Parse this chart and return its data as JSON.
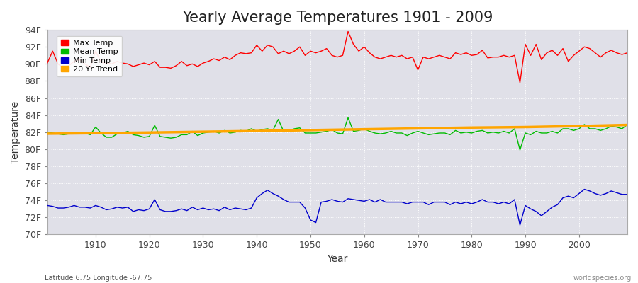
{
  "title": "Yearly Average Temperatures 1901 - 2009",
  "xlabel": "Year",
  "ylabel": "Temperature",
  "background_color": "#ffffff",
  "plot_bg_color": "#e0e0e8",
  "years": [
    1901,
    1902,
    1903,
    1904,
    1905,
    1906,
    1907,
    1908,
    1909,
    1910,
    1911,
    1912,
    1913,
    1914,
    1915,
    1916,
    1917,
    1918,
    1919,
    1920,
    1921,
    1922,
    1923,
    1924,
    1925,
    1926,
    1927,
    1928,
    1929,
    1930,
    1931,
    1932,
    1933,
    1934,
    1935,
    1936,
    1937,
    1938,
    1939,
    1940,
    1941,
    1942,
    1943,
    1944,
    1945,
    1946,
    1947,
    1948,
    1949,
    1950,
    1951,
    1952,
    1953,
    1954,
    1955,
    1956,
    1957,
    1958,
    1959,
    1960,
    1961,
    1962,
    1963,
    1964,
    1965,
    1966,
    1967,
    1968,
    1969,
    1970,
    1971,
    1972,
    1973,
    1974,
    1975,
    1976,
    1977,
    1978,
    1979,
    1980,
    1981,
    1982,
    1983,
    1984,
    1985,
    1986,
    1987,
    1988,
    1989,
    1990,
    1991,
    1992,
    1993,
    1994,
    1995,
    1996,
    1997,
    1998,
    1999,
    2000,
    2001,
    2002,
    2003,
    2004,
    2005,
    2006,
    2007,
    2008,
    2009
  ],
  "max_temp": [
    90.1,
    91.5,
    90.0,
    89.5,
    89.8,
    90.3,
    90.5,
    90.0,
    89.6,
    91.5,
    90.2,
    90.1,
    90.0,
    90.3,
    90.1,
    90.0,
    89.7,
    89.9,
    90.1,
    89.9,
    90.3,
    89.6,
    89.6,
    89.5,
    89.8,
    90.3,
    89.8,
    90.0,
    89.7,
    90.1,
    90.3,
    90.6,
    90.4,
    90.8,
    90.5,
    91.0,
    91.3,
    91.2,
    91.3,
    92.2,
    91.5,
    92.2,
    92.0,
    91.2,
    91.5,
    91.2,
    91.5,
    92.0,
    91.0,
    91.5,
    91.3,
    91.5,
    91.8,
    91.0,
    90.8,
    91.0,
    93.8,
    92.3,
    91.5,
    92.0,
    91.3,
    90.8,
    90.6,
    90.8,
    91.0,
    90.8,
    91.0,
    90.6,
    90.8,
    89.3,
    90.8,
    90.6,
    90.8,
    91.0,
    90.8,
    90.6,
    91.3,
    91.1,
    91.3,
    91.0,
    91.1,
    91.6,
    90.7,
    90.8,
    90.8,
    91.0,
    90.8,
    91.0,
    87.8,
    92.3,
    91.0,
    92.3,
    90.5,
    91.3,
    91.6,
    91.0,
    91.8,
    90.3,
    91.0,
    91.5,
    92.0,
    91.8,
    91.3,
    90.8,
    91.3,
    91.6,
    91.3,
    91.1,
    91.3
  ],
  "mean_temp": [
    82.0,
    81.9,
    81.8,
    81.7,
    81.8,
    82.0,
    81.8,
    81.9,
    81.7,
    82.6,
    81.9,
    81.4,
    81.4,
    81.8,
    81.9,
    82.1,
    81.7,
    81.6,
    81.4,
    81.5,
    82.8,
    81.5,
    81.4,
    81.3,
    81.4,
    81.7,
    81.7,
    82.1,
    81.6,
    81.9,
    82.0,
    82.1,
    81.9,
    82.2,
    81.9,
    82.0,
    82.2,
    82.1,
    82.4,
    82.1,
    82.3,
    82.4,
    82.2,
    83.5,
    82.1,
    82.2,
    82.4,
    82.5,
    81.9,
    81.9,
    81.9,
    82.0,
    82.1,
    82.3,
    81.9,
    81.8,
    83.7,
    82.1,
    82.2,
    82.4,
    82.1,
    81.9,
    81.8,
    81.9,
    82.1,
    81.9,
    81.9,
    81.6,
    81.9,
    82.1,
    81.9,
    81.7,
    81.8,
    81.9,
    81.9,
    81.7,
    82.2,
    81.9,
    82.0,
    81.9,
    82.1,
    82.2,
    81.9,
    82.0,
    81.9,
    82.1,
    81.9,
    82.4,
    79.9,
    81.9,
    81.7,
    82.1,
    81.9,
    81.9,
    82.1,
    81.9,
    82.4,
    82.4,
    82.2,
    82.4,
    82.9,
    82.4,
    82.4,
    82.2,
    82.4,
    82.7,
    82.6,
    82.4,
    82.9
  ],
  "min_temp": [
    73.4,
    73.3,
    73.1,
    73.1,
    73.2,
    73.4,
    73.2,
    73.2,
    73.1,
    73.4,
    73.2,
    72.9,
    73.0,
    73.2,
    73.1,
    73.2,
    72.7,
    72.9,
    72.8,
    73.0,
    74.1,
    72.9,
    72.7,
    72.7,
    72.8,
    73.0,
    72.8,
    73.2,
    72.9,
    73.1,
    72.9,
    73.0,
    72.8,
    73.2,
    72.9,
    73.1,
    73.0,
    72.9,
    73.1,
    74.3,
    74.8,
    75.2,
    74.8,
    74.5,
    74.1,
    73.8,
    73.8,
    73.8,
    73.1,
    71.7,
    71.4,
    73.8,
    73.9,
    74.1,
    73.9,
    73.8,
    74.2,
    74.1,
    74.0,
    73.9,
    74.1,
    73.8,
    74.1,
    73.8,
    73.8,
    73.8,
    73.8,
    73.6,
    73.8,
    73.8,
    73.8,
    73.5,
    73.8,
    73.8,
    73.8,
    73.5,
    73.8,
    73.6,
    73.8,
    73.6,
    73.8,
    74.1,
    73.8,
    73.8,
    73.6,
    73.8,
    73.6,
    74.1,
    71.1,
    73.4,
    73.0,
    72.7,
    72.2,
    72.7,
    73.2,
    73.5,
    74.3,
    74.5,
    74.3,
    74.8,
    75.3,
    75.1,
    74.8,
    74.6,
    74.8,
    75.1,
    74.9,
    74.7,
    74.7
  ],
  "trend_years": [
    1901,
    1910,
    1920,
    1930,
    1940,
    1950,
    1960,
    1970,
    1980,
    1990,
    2000,
    2009
  ],
  "trend_temp": [
    81.82,
    81.88,
    81.96,
    82.05,
    82.14,
    82.24,
    82.34,
    82.44,
    82.54,
    82.6,
    82.72,
    82.85
  ],
  "max_color": "#ff0000",
  "mean_color": "#00bb00",
  "min_color": "#0000cc",
  "trend_color": "#ffa500",
  "grid_color": "#ffffff",
  "ylim": [
    70,
    94
  ],
  "yticks": [
    70,
    72,
    74,
    76,
    78,
    80,
    82,
    84,
    86,
    88,
    90,
    92,
    94
  ],
  "ytick_labels": [
    "70F",
    "72F",
    "74F",
    "76F",
    "78F",
    "80F",
    "82F",
    "84F",
    "86F",
    "88F",
    "90F",
    "92F",
    "94F"
  ],
  "xlim": [
    1901,
    2009
  ],
  "xticks": [
    1910,
    1920,
    1930,
    1940,
    1950,
    1960,
    1970,
    1980,
    1990,
    2000
  ],
  "legend_labels": [
    "Max Temp",
    "Mean Temp",
    "Min Temp",
    "20 Yr Trend"
  ],
  "legend_colors": [
    "#ff0000",
    "#00bb00",
    "#0000cc",
    "#ffa500"
  ],
  "footer_left": "Latitude 6.75 Longitude -67.75",
  "footer_right": "worldspecies.org",
  "title_fontsize": 15,
  "axis_fontsize": 9,
  "legend_fontsize": 8,
  "linewidth": 1.0,
  "trend_linewidth": 2.5
}
